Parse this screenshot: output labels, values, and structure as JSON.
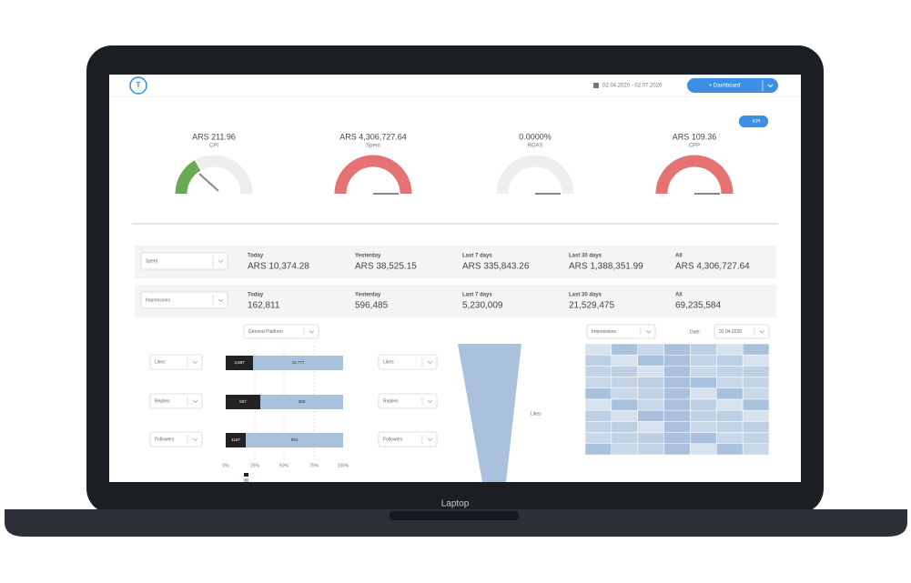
{
  "device_label": "Laptop",
  "header": {
    "date_range": "02.04.2020 - 02.07.2020",
    "button": "+ Dashboard"
  },
  "kpi_button": "KPI",
  "gauges": [
    {
      "value": "ARS 211.96",
      "label": "CPI"
    },
    {
      "value": "ARS 4,306,727.64",
      "label": "Spent"
    },
    {
      "value": "0.0000%",
      "label": "ROAS"
    },
    {
      "value": "ARS 109.36",
      "label": "CPP"
    }
  ],
  "stats": [
    {
      "metric": "Spent",
      "cells": [
        {
          "label": "Today",
          "value": "ARS 10,374.28"
        },
        {
          "label": "Yesterday",
          "value": "ARS 38,525.15"
        },
        {
          "label": "Last 7 days",
          "value": "ARS 335,843.26"
        },
        {
          "label": "Last 30 days",
          "value": "ARS 1,388,351.99"
        },
        {
          "label": "All",
          "value": "ARS 4,306,727.64"
        }
      ]
    },
    {
      "metric": "Impressions",
      "cells": [
        {
          "label": "Today",
          "value": "162,811"
        },
        {
          "label": "Yesterday",
          "value": "596,485"
        },
        {
          "label": "Last 7 days",
          "value": "5,230,009"
        },
        {
          "label": "Last 30 days",
          "value": "21,529,475"
        },
        {
          "label": "All",
          "value": "69,235,584"
        }
      ]
    }
  ],
  "bar_panel": {
    "dropdown": "General Platform",
    "rows": [
      {
        "metric": "Likes",
        "left": "4,587",
        "right": "16,777"
      },
      {
        "metric": "Replies",
        "left": "507",
        "right": "388"
      },
      {
        "metric": "Followers",
        "left": "1167",
        "right": "854"
      }
    ],
    "axis": [
      "0%",
      "25%",
      "50%",
      "75%",
      "100%"
    ]
  },
  "funnel": {
    "dropdowns": [
      "Likes",
      "Replies",
      "Followers"
    ],
    "label": "Likes"
  },
  "heatmap": {
    "dropdown": "Impressions",
    "date_label": "Date:",
    "date": "02.04.2020"
  }
}
